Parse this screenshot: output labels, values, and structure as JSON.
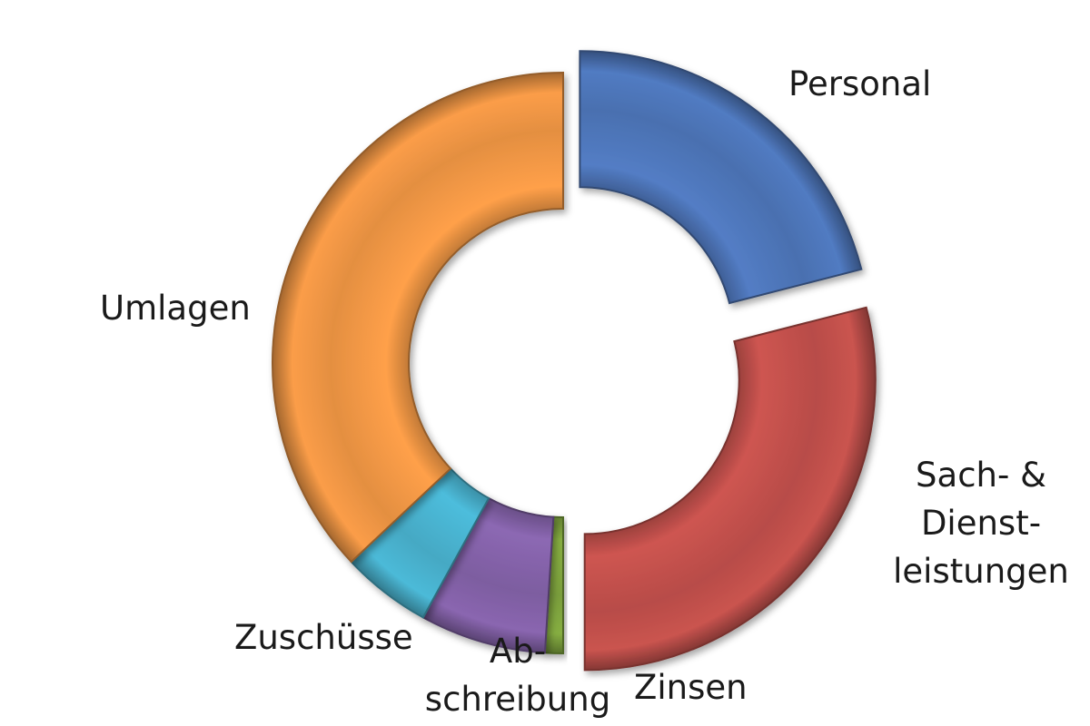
{
  "chart_data": {
    "type": "pie",
    "variant": "donut",
    "exploded_segments": [
      "Personal",
      "Sach- & Dienstleistungen"
    ],
    "categories": [
      "Personal",
      "Sach- & Dienstleistungen",
      "Zinsen",
      "Abschreibung",
      "Zuschüsse",
      "Umlagen"
    ],
    "values": [
      21,
      29,
      1,
      7,
      5,
      37
    ],
    "label_lines": [
      [
        "Personal"
      ],
      [
        "Sach- &",
        "Dienst-",
        "leistungen"
      ],
      [
        "Zinsen"
      ],
      [
        "Ab-",
        "schreibung"
      ],
      [
        "Zuschüsse"
      ],
      [
        "Umlagen"
      ]
    ],
    "colors": [
      "#4a70b0",
      "#b84c48",
      "#7a9e3c",
      "#7d5da0",
      "#45a9c4",
      "#e48f41"
    ],
    "legend": "none"
  }
}
